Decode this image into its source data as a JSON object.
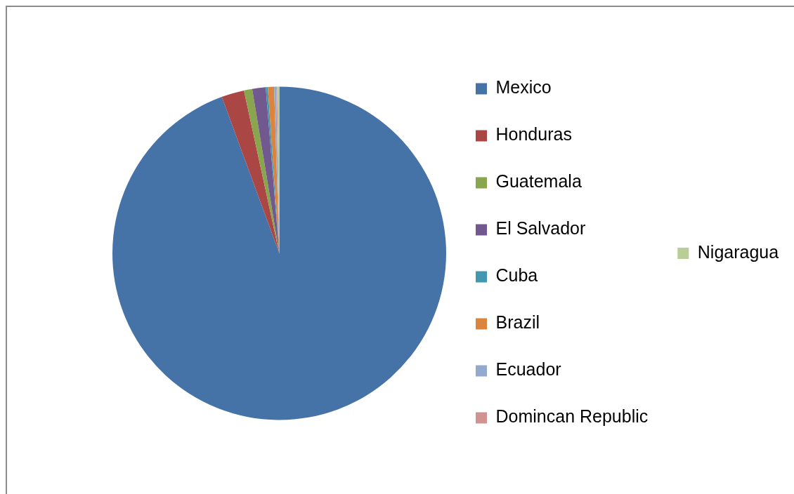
{
  "chart_data": {
    "type": "pie",
    "categories": [
      "Mexico",
      "Honduras",
      "Guatemala",
      "El Salvador",
      "Cuba",
      "Brazil",
      "Ecuador",
      "Domincan Republic",
      "Nigaragua"
    ],
    "values": [
      94.4,
      2.2,
      0.8,
      1.3,
      0.2,
      0.6,
      0.2,
      0.1,
      0.2
    ],
    "colors": [
      "#4572a7",
      "#aa4643",
      "#89a54e",
      "#71588f",
      "#4198af",
      "#db843d",
      "#93a9cf",
      "#d19392",
      "#b9cd96"
    ],
    "legend": "right"
  }
}
